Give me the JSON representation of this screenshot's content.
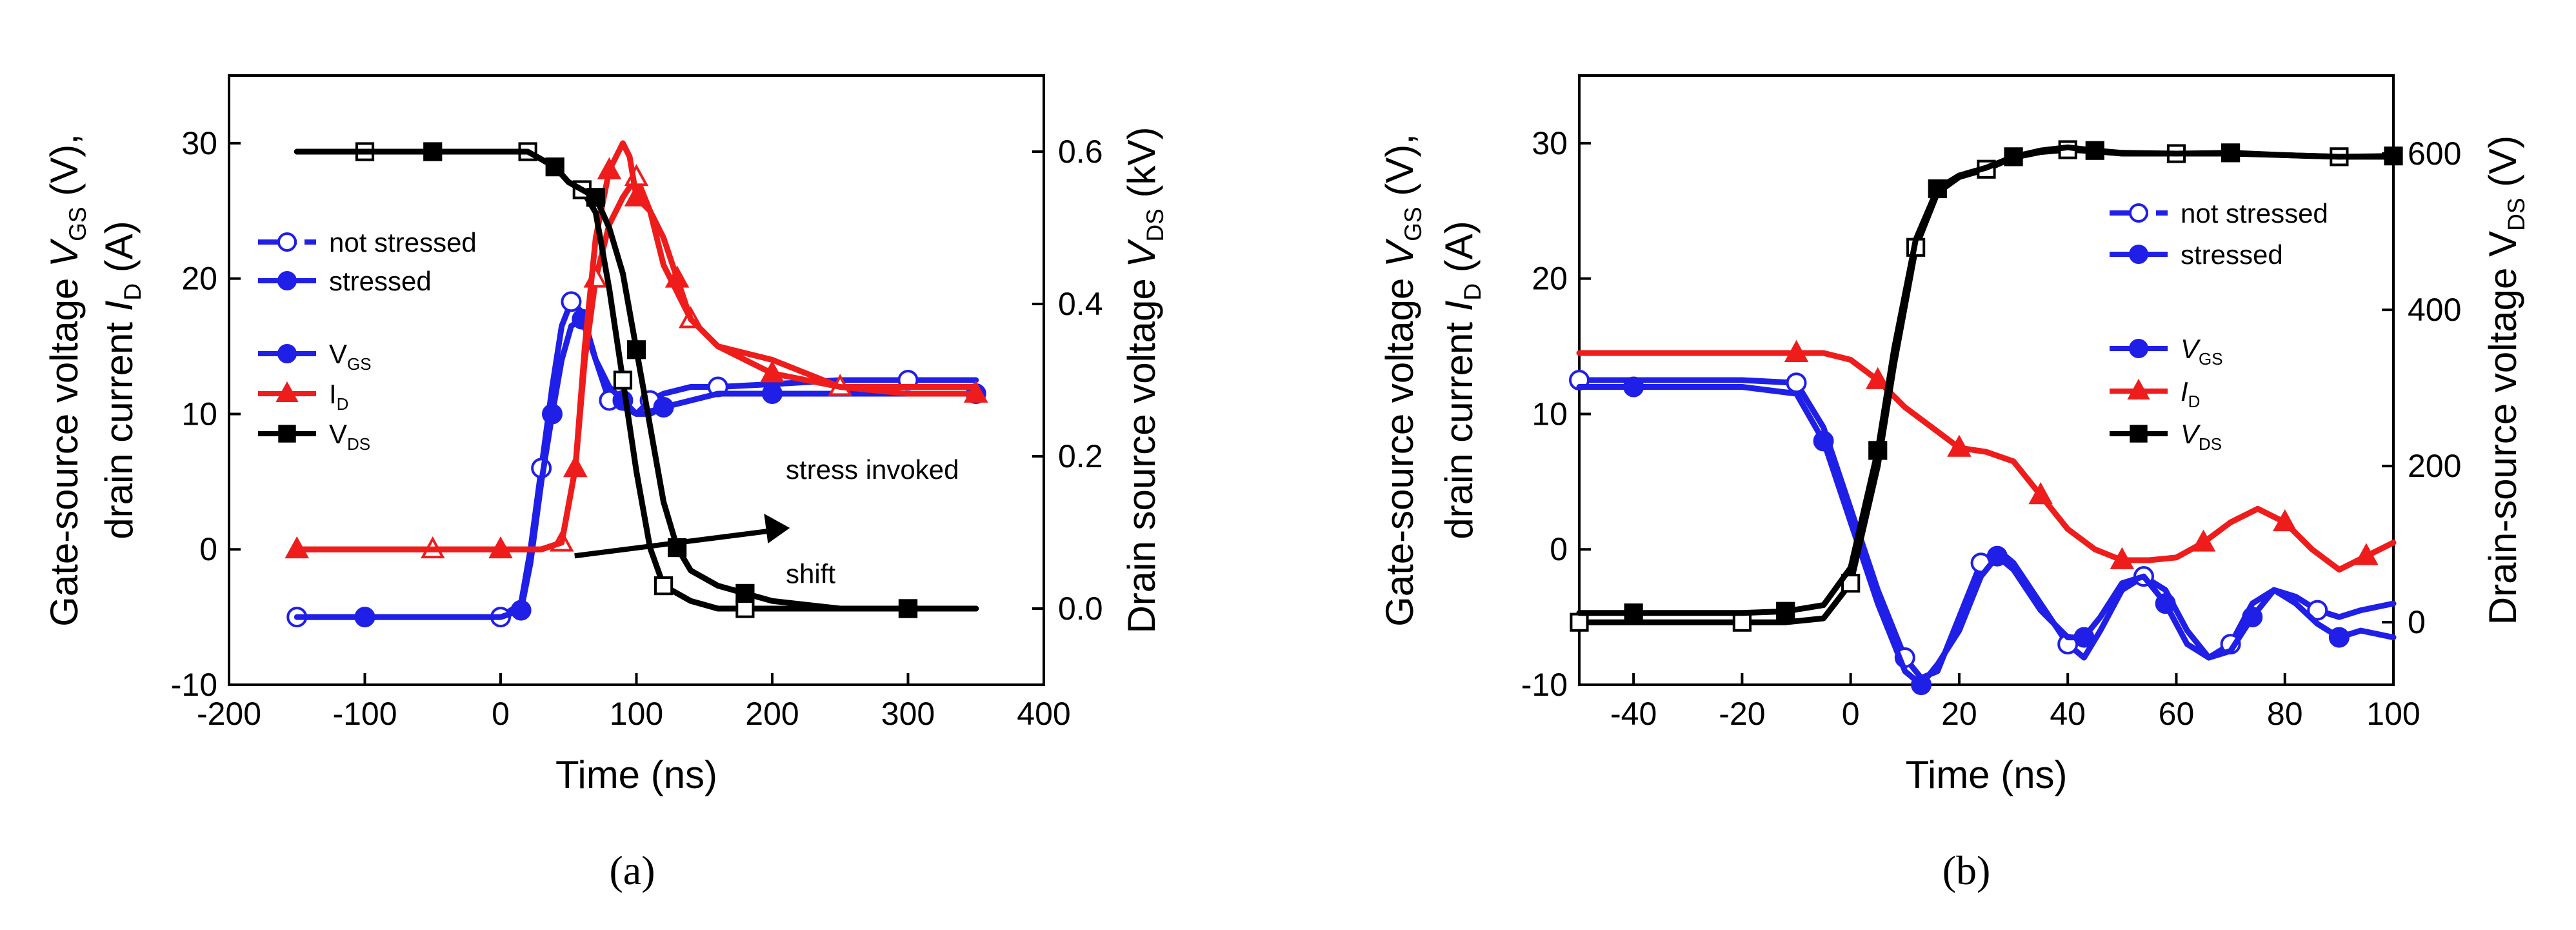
{
  "chart_data": [
    {
      "type": "line",
      "panel_label": "(a)",
      "xlabel": "Time (ns)",
      "ylabel_line1": [
        "Gate-source voltage ",
        "V",
        "GS",
        " (V),"
      ],
      "ylabel_line2": [
        "drain current ",
        "I",
        "D",
        " (A)"
      ],
      "y2label": [
        "Drain source voltage ",
        "V",
        "DS",
        " (kV)"
      ],
      "xlim": [
        -200,
        400
      ],
      "ylim": [
        -10,
        35
      ],
      "y2lim": [
        -0.1,
        0.7
      ],
      "x_ticks": [
        "-200",
        "-100",
        "0",
        "100",
        "200",
        "300",
        "400"
      ],
      "y_ticks": [
        "-10",
        "0",
        "10",
        "20",
        "30"
      ],
      "y2_ticks": [
        "0.0",
        "0.2",
        "0.4",
        "0.6"
      ],
      "legend_style": [
        {
          "label": "not stressed",
          "marker": "open-circle"
        },
        {
          "label": "stressed",
          "marker": "filled-circle"
        }
      ],
      "legend_signals": [
        {
          "label": "V",
          "sub": "GS",
          "color": "#1f1fe8",
          "marker": "circle"
        },
        {
          "label": "I",
          "sub": "D",
          "color": "#ef1c1c",
          "marker": "triangle"
        },
        {
          "label": "V",
          "sub": "DS",
          "color": "#000000",
          "marker": "square"
        }
      ],
      "annotation": {
        "line1": "stress invoked",
        "line2": "shift"
      },
      "series": [
        {
          "name": "VGS not stressed",
          "color": "#1f1fe8",
          "axis": "left",
          "marker": "open-circle",
          "x": [
            -150,
            -100,
            -50,
            0,
            15,
            22,
            30,
            38,
            45,
            52,
            60,
            70,
            80,
            90,
            100,
            110,
            120,
            140,
            160,
            200,
            250,
            300,
            350
          ],
          "y": [
            -5,
            -5,
            -5,
            -5,
            -4,
            0,
            6,
            12,
            16.5,
            18.3,
            17.5,
            14,
            11,
            10.5,
            10,
            11,
            11.5,
            12,
            12,
            12.2,
            12.5,
            12.5,
            12.5
          ]
        },
        {
          "name": "VGS stressed",
          "color": "#1f1fe8",
          "axis": "left",
          "marker": "filled-circle",
          "x": [
            -150,
            -100,
            -50,
            0,
            15,
            22,
            30,
            38,
            45,
            52,
            60,
            70,
            80,
            90,
            100,
            110,
            120,
            140,
            160,
            200,
            250,
            300,
            350
          ],
          "y": [
            -5,
            -5,
            -5,
            -5,
            -4.5,
            -1,
            5,
            10,
            14,
            16.5,
            17,
            14,
            12,
            11,
            10,
            10,
            10.5,
            11,
            11.5,
            11.5,
            11.5,
            11.5,
            11.5
          ]
        },
        {
          "name": "ID not stressed",
          "color": "#ef1c1c",
          "axis": "left",
          "marker": "open-triangle",
          "x": [
            -150,
            -100,
            -50,
            0,
            30,
            45,
            55,
            62,
            70,
            80,
            90,
            100,
            110,
            120,
            140,
            160,
            200,
            250,
            300,
            350
          ],
          "y": [
            0,
            0,
            0,
            0,
            0,
            0.5,
            6,
            14,
            20,
            24,
            26,
            27.5,
            25,
            21,
            17,
            15,
            14,
            12,
            12,
            12
          ]
        },
        {
          "name": "ID stressed",
          "color": "#ef1c1c",
          "axis": "left",
          "marker": "filled-triangle",
          "x": [
            -150,
            -100,
            -50,
            0,
            30,
            45,
            55,
            62,
            70,
            80,
            90,
            95,
            100,
            110,
            120,
            130,
            140,
            160,
            200,
            250,
            300,
            350
          ],
          "y": [
            0,
            0,
            0,
            0,
            0,
            0.5,
            6,
            15,
            23,
            28,
            30,
            29,
            26,
            25,
            23,
            20,
            17,
            15,
            13,
            12,
            11.5,
            11.5
          ]
        },
        {
          "name": "VDS not stressed",
          "color": "#000000",
          "axis": "right",
          "marker": "open-square",
          "x": [
            -150,
            -100,
            -50,
            0,
            20,
            40,
            50,
            60,
            70,
            80,
            90,
            100,
            110,
            120,
            140,
            160,
            180,
            200,
            250,
            300,
            350
          ],
          "y": [
            0.6,
            0.6,
            0.6,
            0.6,
            0.6,
            0.58,
            0.56,
            0.55,
            0.52,
            0.42,
            0.3,
            0.18,
            0.08,
            0.03,
            0.01,
            0.0,
            0.0,
            0.0,
            0.0,
            0.0,
            0.0
          ]
        },
        {
          "name": "VDS stressed",
          "color": "#000000",
          "axis": "right",
          "marker": "filled-square",
          "x": [
            -150,
            -100,
            -50,
            0,
            20,
            40,
            50,
            60,
            70,
            80,
            90,
            100,
            110,
            120,
            130,
            140,
            160,
            180,
            200,
            250,
            300,
            350
          ],
          "y": [
            0.6,
            0.6,
            0.6,
            0.6,
            0.6,
            0.58,
            0.56,
            0.55,
            0.54,
            0.5,
            0.44,
            0.34,
            0.24,
            0.14,
            0.08,
            0.05,
            0.03,
            0.02,
            0.01,
            0.0,
            0.0,
            0.0
          ]
        }
      ]
    },
    {
      "type": "line",
      "panel_label": "(b)",
      "xlabel": "Time (ns)",
      "ylabel_line1": [
        "Gate-source voltage ",
        "V",
        "GS",
        " (V),"
      ],
      "ylabel_line2": [
        "drain current ",
        "I",
        "D",
        " (A)"
      ],
      "y2label": [
        "Drain-source voltage V",
        "",
        "DS",
        " (V)"
      ],
      "xlim": [
        -50,
        100
      ],
      "ylim": [
        -10,
        35
      ],
      "y2lim": [
        -80,
        700
      ],
      "x_ticks": [
        "-40",
        "-20",
        "0",
        "20",
        "40",
        "60",
        "80",
        "100"
      ],
      "y_ticks": [
        "-10",
        "0",
        "10",
        "20",
        "30"
      ],
      "y2_ticks": [
        "0",
        "200",
        "400",
        "600"
      ],
      "legend_style": [
        {
          "label": "not stressed",
          "marker": "open-circle"
        },
        {
          "label": "stressed",
          "marker": "filled-circle"
        }
      ],
      "legend_signals": [
        {
          "label": "V",
          "sub": "GS",
          "color": "#1f1fe8",
          "marker": "circle"
        },
        {
          "label": "I",
          "sub": "D",
          "color": "#ef1c1c",
          "marker": "triangle"
        },
        {
          "label": "V",
          "sub": "DS",
          "color": "#000000",
          "marker": "square"
        }
      ],
      "series": [
        {
          "name": "VGS not stressed",
          "color": "#1f1fe8",
          "axis": "left",
          "marker": "open-circle",
          "x": [
            -50,
            -40,
            -30,
            -20,
            -10,
            -5,
            0,
            5,
            10,
            13,
            16,
            20,
            24,
            27,
            30,
            35,
            40,
            43,
            46,
            50,
            54,
            58,
            62,
            66,
            70,
            74,
            78,
            82,
            86,
            90,
            94,
            100
          ],
          "y": [
            12.5,
            12.5,
            12.5,
            12.5,
            12.3,
            9,
            3,
            -3,
            -8,
            -9.5,
            -9,
            -5,
            -1,
            0,
            -1,
            -4,
            -7,
            -8,
            -6,
            -3,
            -2,
            -3,
            -6,
            -8,
            -7,
            -4,
            -3,
            -3.5,
            -4.5,
            -5,
            -4.5,
            -4
          ]
        },
        {
          "name": "VGS stressed",
          "color": "#1f1fe8",
          "axis": "left",
          "marker": "filled-circle",
          "x": [
            -50,
            -40,
            -30,
            -20,
            -10,
            -5,
            0,
            5,
            10,
            13,
            16,
            20,
            24,
            27,
            30,
            35,
            40,
            43,
            46,
            50,
            54,
            58,
            62,
            66,
            70,
            74,
            78,
            82,
            86,
            90,
            94,
            100
          ],
          "y": [
            12,
            12,
            12,
            12,
            11.5,
            8,
            2,
            -4,
            -9,
            -10,
            -8.5,
            -6,
            -2,
            -0.5,
            -1.5,
            -4.5,
            -6.5,
            -6.5,
            -5,
            -2.5,
            -2,
            -4,
            -7,
            -8,
            -7.5,
            -5,
            -3,
            -4,
            -5.5,
            -6.5,
            -6,
            -6.5
          ]
        },
        {
          "name": "ID stressed",
          "color": "#ef1c1c",
          "axis": "left",
          "marker": "filled-triangle",
          "x": [
            -50,
            -30,
            -10,
            -5,
            0,
            5,
            10,
            15,
            20,
            25,
            30,
            35,
            40,
            45,
            50,
            55,
            60,
            65,
            70,
            75,
            80,
            85,
            90,
            95,
            100
          ],
          "y": [
            14.5,
            14.5,
            14.5,
            14.5,
            14,
            12.5,
            10.5,
            9,
            7.5,
            7.2,
            6.5,
            4,
            1.5,
            0,
            -0.8,
            -0.8,
            -0.6,
            0.5,
            2,
            3,
            2,
            0,
            -1.5,
            -0.5,
            0.5
          ]
        },
        {
          "name": "VDS not stressed",
          "color": "#000000",
          "axis": "right",
          "marker": "open-square",
          "x": [
            -50,
            -40,
            -30,
            -20,
            -12,
            -5,
            0,
            5,
            8,
            12,
            16,
            20,
            25,
            30,
            35,
            40,
            45,
            50,
            60,
            70,
            80,
            90,
            100
          ],
          "y": [
            0,
            0,
            0,
            0,
            0,
            5,
            50,
            200,
            330,
            480,
            550,
            570,
            580,
            595,
            602,
            605,
            603,
            600,
            600,
            600,
            598,
            596,
            596
          ]
        },
        {
          "name": "VDS stressed",
          "color": "#000000",
          "axis": "right",
          "marker": "filled-square",
          "x": [
            -50,
            -40,
            -30,
            -20,
            -12,
            -5,
            0,
            5,
            8,
            12,
            16,
            20,
            25,
            30,
            35,
            40,
            45,
            50,
            60,
            70,
            80,
            90,
            100
          ],
          "y": [
            12,
            12,
            12,
            12,
            14,
            22,
            70,
            220,
            350,
            490,
            555,
            572,
            582,
            596,
            604,
            608,
            604,
            601,
            600,
            601,
            598,
            596,
            597
          ]
        }
      ]
    }
  ]
}
